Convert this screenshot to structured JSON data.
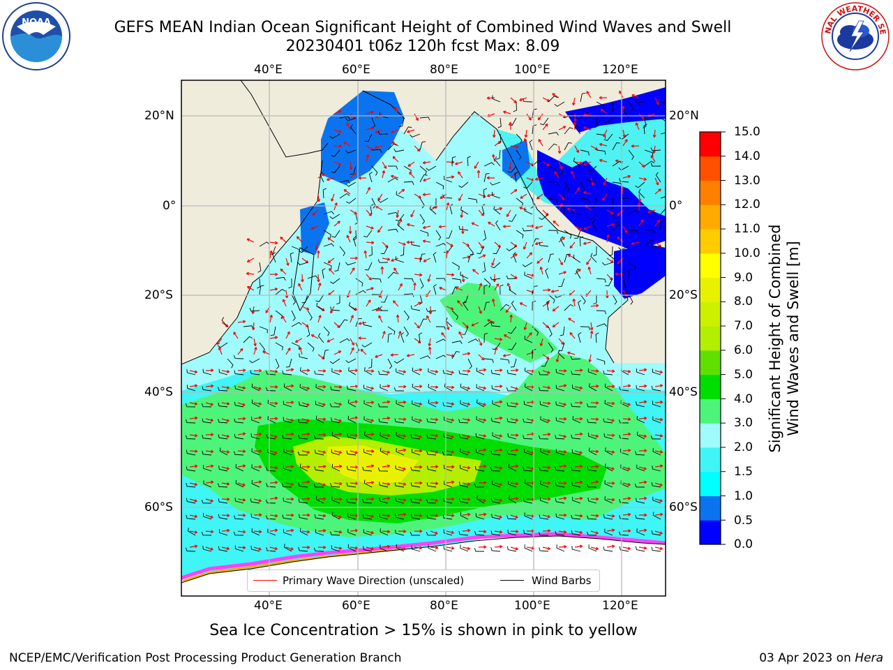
{
  "title": {
    "line1": "GEFS MEAN Indian Ocean Significant Height of Combined Wind Waves and Swell",
    "line2": "20230401 t06z 120h fcst   Max: 8.09"
  },
  "map": {
    "lon_range": [
      20,
      130
    ],
    "lat_range": [
      -73,
      28
    ],
    "lon_ticks": [
      "40°E",
      "60°E",
      "80°E",
      "100°E",
      "120°E"
    ],
    "lat_ticks": [
      "20°N",
      "0°",
      "20°S",
      "40°S",
      "60°S"
    ],
    "land_color": "#efecdc",
    "gridlines": true
  },
  "colorbar": {
    "label": "Significant Height of Combined\nWind Waves and Swell [m]",
    "ticks": [
      "0.0",
      "0.5",
      "1.0",
      "1.5",
      "2.0",
      "3.0",
      "4.0",
      "5.0",
      "6.0",
      "7.0",
      "8.0",
      "9.0",
      "10.0",
      "11.0",
      "12.0",
      "13.0",
      "14.0",
      "15.0"
    ],
    "colors": [
      "#0000ff",
      "#0a74f0",
      "#00ffff",
      "#3ff5f5",
      "#a0fcfc",
      "#4cf57a",
      "#00dd00",
      "#60e000",
      "#b4ee00",
      "#ccf000",
      "#e8f200",
      "#ffff00",
      "#ffcc00",
      "#ffaa00",
      "#ff8000",
      "#ff5000",
      "#ff0000"
    ]
  },
  "legend": {
    "items": [
      {
        "label": "Primary Wave Direction (unscaled)",
        "color": "#ff0000"
      },
      {
        "label": "Wind Barbs",
        "color": "#000000"
      }
    ]
  },
  "footer": {
    "note": "Sea Ice Concentration > 15% is shown in pink to yellow",
    "credit": "NCEP/EMC/Verification Post Processing Product Generation Branch",
    "date": "03 Apr 2023 on",
    "machine": "Hera"
  },
  "logos": {
    "noaa": "NOAA",
    "nws": "NATIONAL WEATHER SERVICE"
  }
}
